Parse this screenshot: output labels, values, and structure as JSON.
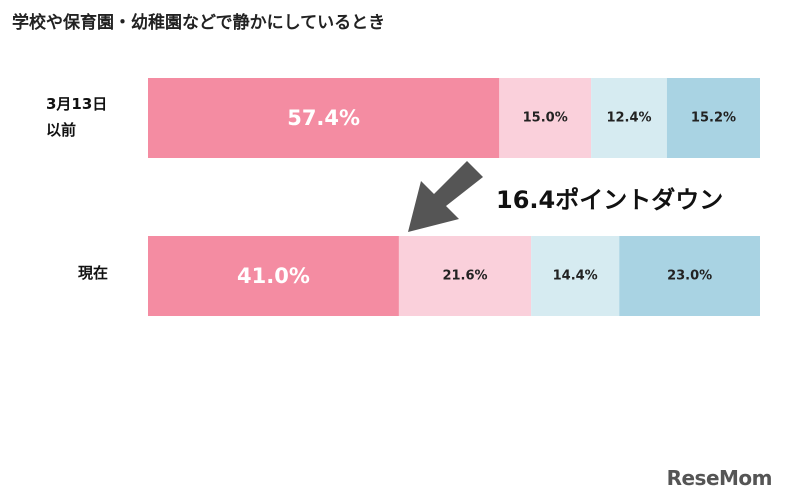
{
  "chart_data": {
    "type": "bar",
    "orientation": "horizontal",
    "stacked": true,
    "title": "学校や保育園・幼稚園などで静かにしているとき",
    "categories": [
      "3月13日\n以前",
      "現在"
    ],
    "series": [
      {
        "values": [
          57.4,
          41.0
        ],
        "color": "#f48ca2"
      },
      {
        "values": [
          15.0,
          21.6
        ],
        "color": "#fad0db"
      },
      {
        "values": [
          12.4,
          14.4
        ],
        "color": "#d6ebf1"
      },
      {
        "values": [
          15.2,
          23.0
        ],
        "color": "#a9d3e3"
      }
    ],
    "data_labels": [
      [
        "57.4%",
        "15.0%",
        "12.4%",
        "15.2%"
      ],
      [
        "41.0%",
        "21.6%",
        "14.4%",
        "23.0%"
      ]
    ],
    "xlim": [
      0,
      100
    ],
    "grid": false,
    "annotation": "16.4ポイントダウン"
  },
  "logo": {
    "text": "ReseMom"
  }
}
